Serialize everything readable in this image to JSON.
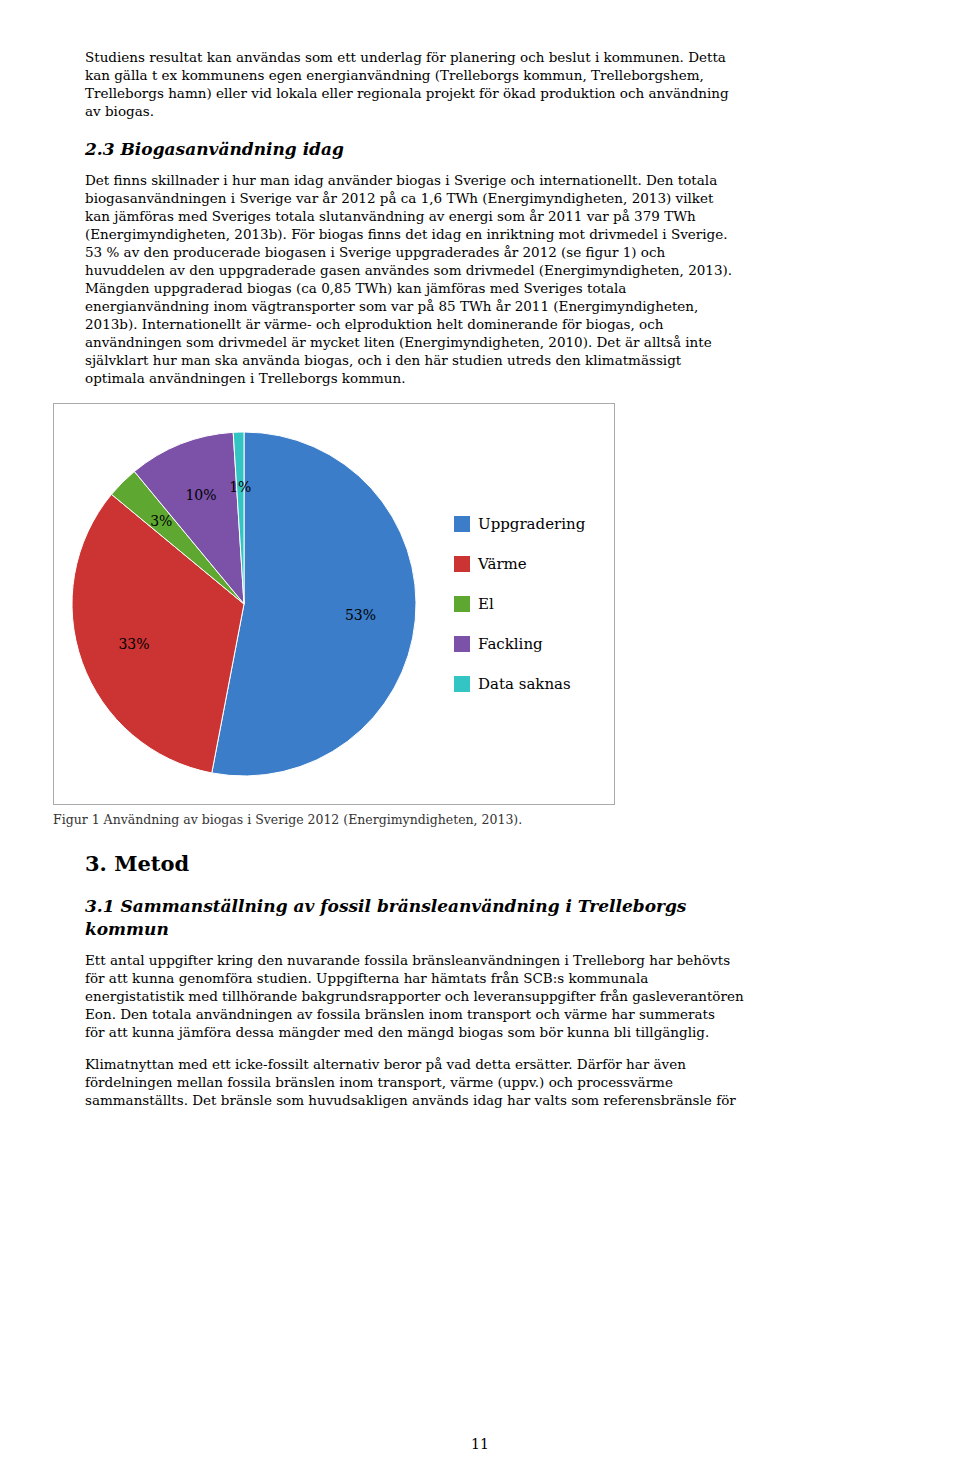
{
  "chart_data": {
    "type": "pie",
    "title": "Figur 1 Användning av biogas i Sverige 2012 (Energimyndigheten, 2013).",
    "categories": [
      "Uppgradering",
      "Värme",
      "El",
      "Fackling",
      "Data saknas"
    ],
    "values": [
      53,
      33,
      3,
      10,
      1
    ],
    "value_labels": [
      "53%",
      "33%",
      "3%",
      "10%",
      "1%"
    ],
    "colors": [
      "#3B7DC8",
      "#CC3333",
      "#5EA832",
      "#7B52A8",
      "#33C4C4"
    ],
    "data_labels": true,
    "legend": "right",
    "annotations": [
      "Studiens resultat kan användas som ett underlag för planering och beslut i kommunen. Detta\nkan gälla t ex kommunens egen energianvändning (Trelleborgs kommun, Trelleborgshem,\nTrelleborgs hamn) eller vid lokala eller regionala projekt för ökad produktion och användning\nav biogas.",
      "2.3 Biogasanvändning idag",
      "Det finns skillnader i hur man idag använder biogas i Sverige och internationellt. Den totala\nbiogasanvändningen i Sverige var år 2012 på ca 1,6 TWh (Energimyndigheten, 2013) vilket\nkan jämföras med Sveriges totala slutanvändning av energi som år 2011 var på 379 TWh\n(Energimyndigheten, 2013b). För biogas finns det idag en inriktning mot drivmedel i Sverige.\n53 % av den producerade biogasen i Sverige uppgraderades år 2012 (se figur 1) och\nhuvuddelen av den uppgraderade gasen användes som drivmedel (Energimyndigheten, 2013).\nMängden uppgraderad biogas (ca 0,85 TWh) kan jämföras med Sveriges totala\nenergi­användning inom vägtransporter som var på 85 TWh år 2011 (Energimyndigheten,\n2013b). Internationellt är värme- och elproduktion helt dominerande för biogas, och\nanvändningen som drivmedel är mycket liten (Energimyndigheten, 2010). Det är alltså inte\nsjälvklart hur man ska använda biogas, och i den här studien utreds den klimatmässigt\noptimala användningen i Trelleborgs kommun.",
      "3. Metod",
      "3.1 Sammanställning av fossil bränsleanvändning i Trelleborgs\nkommun",
      "Ett antal uppgifter kring den nuvarande fossila bränsleanvändningen i Trelleborg har behövts\nför att kunna genomföra studien. Uppgifterna har hämtats från SCB:s kommunala\nenergistatistik med tillhörande bakgrundsrapporter och leveransuppgifter från gasleverantören\nEon. Den totala användningen av fossila bränslen inom transport och värme har summerats\nför att kunna jämföra dessa mängder med den mängd biogas som bör kunna bli tillgänglig.",
      "Klimatnyttan med ett icke-fossilt alternativ beror på vad detta ersätter. Därför har även\nfördelningen mellan fossila bränslen inom transport, värme (uppv.) och processvärme\nsammanställts. Det bränsle som huvudsakligen används idag har valts som referensbränsle för",
      "11"
    ]
  }
}
